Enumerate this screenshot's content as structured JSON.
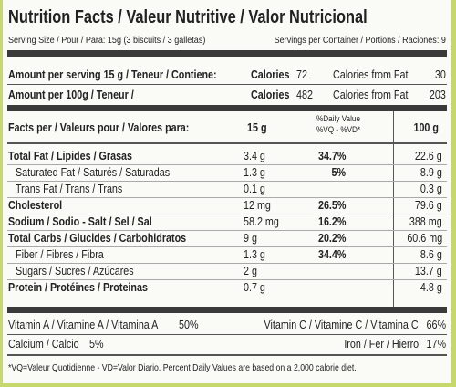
{
  "header": {
    "title": "Nutrition Facts / Valeur Nutritive / Valor Nutricional",
    "serving_size": "Serving Size / Pour / Para: 15g (3 biscuits / 3 galletas)",
    "servings_per_container": "Servings per Container / Portions / Raciones: 9"
  },
  "amounts": [
    {
      "label": "Amount per serving 15 g / Teneur / Contiene:",
      "calories_label": "Calories",
      "calories": "72",
      "fat_label": "Calories from Fat",
      "fat_calories": "30"
    },
    {
      "label": "Amount per 100g / Teneur /",
      "calories_label": "Calories",
      "calories": "482",
      "fat_label": "Calories from Fat",
      "fat_calories": "203"
    }
  ],
  "table": {
    "header": {
      "facts_per": "Facts per / Valeurs pour / Valores para:",
      "per_serving": "15 g",
      "daily_value": "%Daily Value",
      "daily_value_codes": "%VQ - %VD*",
      "per_100g": "100 g"
    },
    "rows": [
      {
        "label": "Total Fat / Lipides / Grasas",
        "per_serving": "3.4 g",
        "daily_value": "34.7%",
        "per_100g": "22.6 g"
      },
      {
        "label": "Saturated Fat / Saturés / Saturadas",
        "per_serving": "1.3 g",
        "daily_value": "5%",
        "per_100g": "8.9 g"
      },
      {
        "label": "Trans Fat / Trans / Trans",
        "per_serving": "0.1 g",
        "per_100g": "0.3 g"
      },
      {
        "label": "Cholesterol",
        "per_serving": "12 mg",
        "daily_value": "26.5%",
        "per_100g": "79.6 g"
      },
      {
        "label": "Sodium / Sodio - Salt / Sel / Sal",
        "per_serving": "58.2 mg",
        "daily_value": "16.2%",
        "per_100g": "388 mg"
      },
      {
        "label": "Total Carbs / Glucides / Carbohidratos",
        "per_serving": "9 g",
        "daily_value": "20.2%",
        "per_100g": "60.6 mg"
      },
      {
        "label": "Fiber / Fibres / Fibra",
        "per_serving": "1.3 g",
        "daily_value": "34.4%",
        "per_100g": "8.6 g"
      },
      {
        "label": "Sugars / Sucres / Azúcares",
        "per_serving": "2 g",
        "per_100g": "13.7 g"
      },
      {
        "label": "Protein / Protéines / Proteinas",
        "per_serving": "0.7 g",
        "per_100g": "4.8 g"
      }
    ]
  },
  "vitamins": [
    {
      "label": "Vitamin A / Vitamine A / Vitamina A",
      "value": "50%"
    },
    {
      "label": "Vitamin C / Vitamine C / Vitamina C",
      "value": "66%"
    },
    {
      "label": "Calcium / Calcio",
      "value": "5%"
    },
    {
      "label": "Iron / Fer / Hierro",
      "value": "17%"
    }
  ],
  "footnote": "*VQ=Valeur Quotidienne - VD=Valor Diario. Percent Daily Values are based on a 2,000 calorie diet."
}
